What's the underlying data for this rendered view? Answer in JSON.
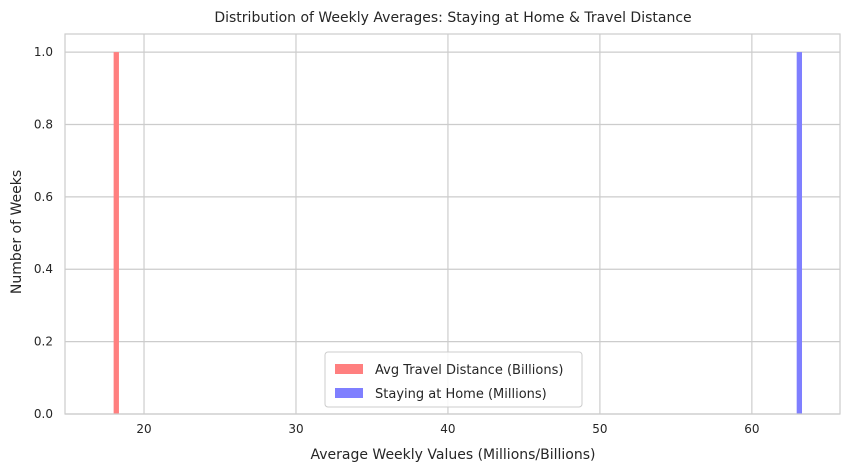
{
  "chart_data": {
    "type": "histogram",
    "title": "Distribution of Weekly Averages: Staying at Home & Travel Distance",
    "xlabel": "Average Weekly Values (Millions/Billions)",
    "ylabel": "Number of Weeks",
    "xlim": [
      14.8,
      65.8
    ],
    "ylim": [
      0,
      1.05
    ],
    "xticks": [
      20,
      30,
      40,
      50,
      60
    ],
    "yticks": [
      0.0,
      0.2,
      0.4,
      0.6,
      0.8,
      1.0
    ],
    "xtick_labels": [
      "20",
      "30",
      "40",
      "50",
      "60"
    ],
    "ytick_labels": [
      "0.0",
      "0.2",
      "0.4",
      "0.6",
      "0.8",
      "1.0"
    ],
    "grid": true,
    "legend_position": "lower center",
    "series": [
      {
        "name": "Avg Travel Distance (Billions)",
        "color": "#ff7f7f",
        "bins": [
          {
            "x0": 18.0,
            "x1": 18.35,
            "count": 1
          }
        ]
      },
      {
        "name": "Staying at Home (Millions)",
        "color": "#7f7fff",
        "bins": [
          {
            "x0": 62.95,
            "x1": 63.3,
            "count": 1
          }
        ]
      }
    ]
  }
}
